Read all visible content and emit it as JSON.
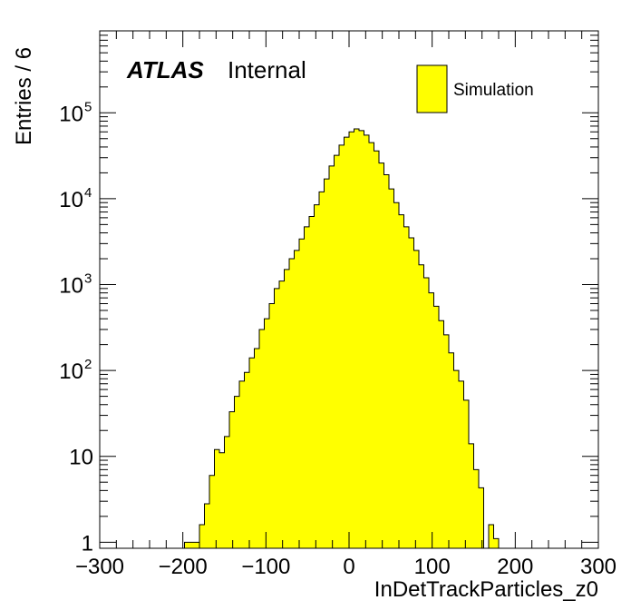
{
  "chart_data": {
    "type": "histogram",
    "xlabel": "InDetTrackParticles_z0",
    "ylabel": "Entries / 6",
    "xlim": [
      -300,
      300
    ],
    "ylim": [
      0.85,
      900000
    ],
    "yscale": "log",
    "bin_width": 6,
    "x_ticks": [
      -300,
      -200,
      -100,
      0,
      100,
      200,
      300
    ],
    "x_tick_labels": [
      "−300",
      "−200",
      "−100",
      "0",
      "100",
      "200",
      "300"
    ],
    "y_ticks": [
      1,
      10,
      100,
      1000,
      10000,
      100000
    ],
    "y_tick_labels": [
      {
        "base": "1",
        "exp": ""
      },
      {
        "base": "10",
        "exp": ""
      },
      {
        "base": "10",
        "exp": "2"
      },
      {
        "base": "10",
        "exp": "3"
      },
      {
        "base": "10",
        "exp": "4"
      },
      {
        "base": "10",
        "exp": "5"
      }
    ],
    "fill_color": "#ffff00",
    "line_color": "#000000",
    "bins": [
      {
        "x0": -198,
        "value": 1
      },
      {
        "x0": -192,
        "value": 1
      },
      {
        "x0": -186,
        "value": 1
      },
      {
        "x0": -180,
        "value": 1.6
      },
      {
        "x0": -174,
        "value": 2.8
      },
      {
        "x0": -168,
        "value": 6
      },
      {
        "x0": -162,
        "value": 12
      },
      {
        "x0": -156,
        "value": 11
      },
      {
        "x0": -150,
        "value": 17
      },
      {
        "x0": -144,
        "value": 33
      },
      {
        "x0": -138,
        "value": 50
      },
      {
        "x0": -132,
        "value": 75
      },
      {
        "x0": -126,
        "value": 95
      },
      {
        "x0": -120,
        "value": 140
      },
      {
        "x0": -114,
        "value": 180
      },
      {
        "x0": -108,
        "value": 300
      },
      {
        "x0": -102,
        "value": 400
      },
      {
        "x0": -96,
        "value": 600
      },
      {
        "x0": -90,
        "value": 900
      },
      {
        "x0": -84,
        "value": 1100
      },
      {
        "x0": -78,
        "value": 1500
      },
      {
        "x0": -72,
        "value": 2000
      },
      {
        "x0": -66,
        "value": 2500
      },
      {
        "x0": -60,
        "value": 3400
      },
      {
        "x0": -54,
        "value": 4700
      },
      {
        "x0": -48,
        "value": 6200
      },
      {
        "x0": -42,
        "value": 8500
      },
      {
        "x0": -36,
        "value": 12000
      },
      {
        "x0": -30,
        "value": 17000
      },
      {
        "x0": -24,
        "value": 24000
      },
      {
        "x0": -18,
        "value": 32000
      },
      {
        "x0": -12,
        "value": 42000
      },
      {
        "x0": -6,
        "value": 52000
      },
      {
        "x0": 0,
        "value": 60000
      },
      {
        "x0": 6,
        "value": 65000
      },
      {
        "x0": 12,
        "value": 62000
      },
      {
        "x0": 18,
        "value": 55000
      },
      {
        "x0": 24,
        "value": 45000
      },
      {
        "x0": 30,
        "value": 36000
      },
      {
        "x0": 36,
        "value": 26000
      },
      {
        "x0": 42,
        "value": 19000
      },
      {
        "x0": 48,
        "value": 13000
      },
      {
        "x0": 54,
        "value": 9000
      },
      {
        "x0": 60,
        "value": 6500
      },
      {
        "x0": 66,
        "value": 4700
      },
      {
        "x0": 72,
        "value": 3500
      },
      {
        "x0": 78,
        "value": 2500
      },
      {
        "x0": 84,
        "value": 1700
      },
      {
        "x0": 90,
        "value": 1200
      },
      {
        "x0": 96,
        "value": 800
      },
      {
        "x0": 102,
        "value": 560
      },
      {
        "x0": 108,
        "value": 380
      },
      {
        "x0": 114,
        "value": 260
      },
      {
        "x0": 120,
        "value": 160
      },
      {
        "x0": 126,
        "value": 100
      },
      {
        "x0": 132,
        "value": 75
      },
      {
        "x0": 138,
        "value": 45
      },
      {
        "x0": 144,
        "value": 14
      },
      {
        "x0": 150,
        "value": 7
      },
      {
        "x0": 156,
        "value": 4.3
      },
      {
        "x0": 162,
        "value": 0
      },
      {
        "x0": 168,
        "value": 1.6
      },
      {
        "x0": 174,
        "value": 1.1
      }
    ],
    "annotations": {
      "experiment": "ATLAS",
      "status": "Internal"
    },
    "legend": {
      "position": "top-right",
      "entries": [
        {
          "label": "Simulation",
          "color": "#ffff00"
        }
      ]
    }
  }
}
